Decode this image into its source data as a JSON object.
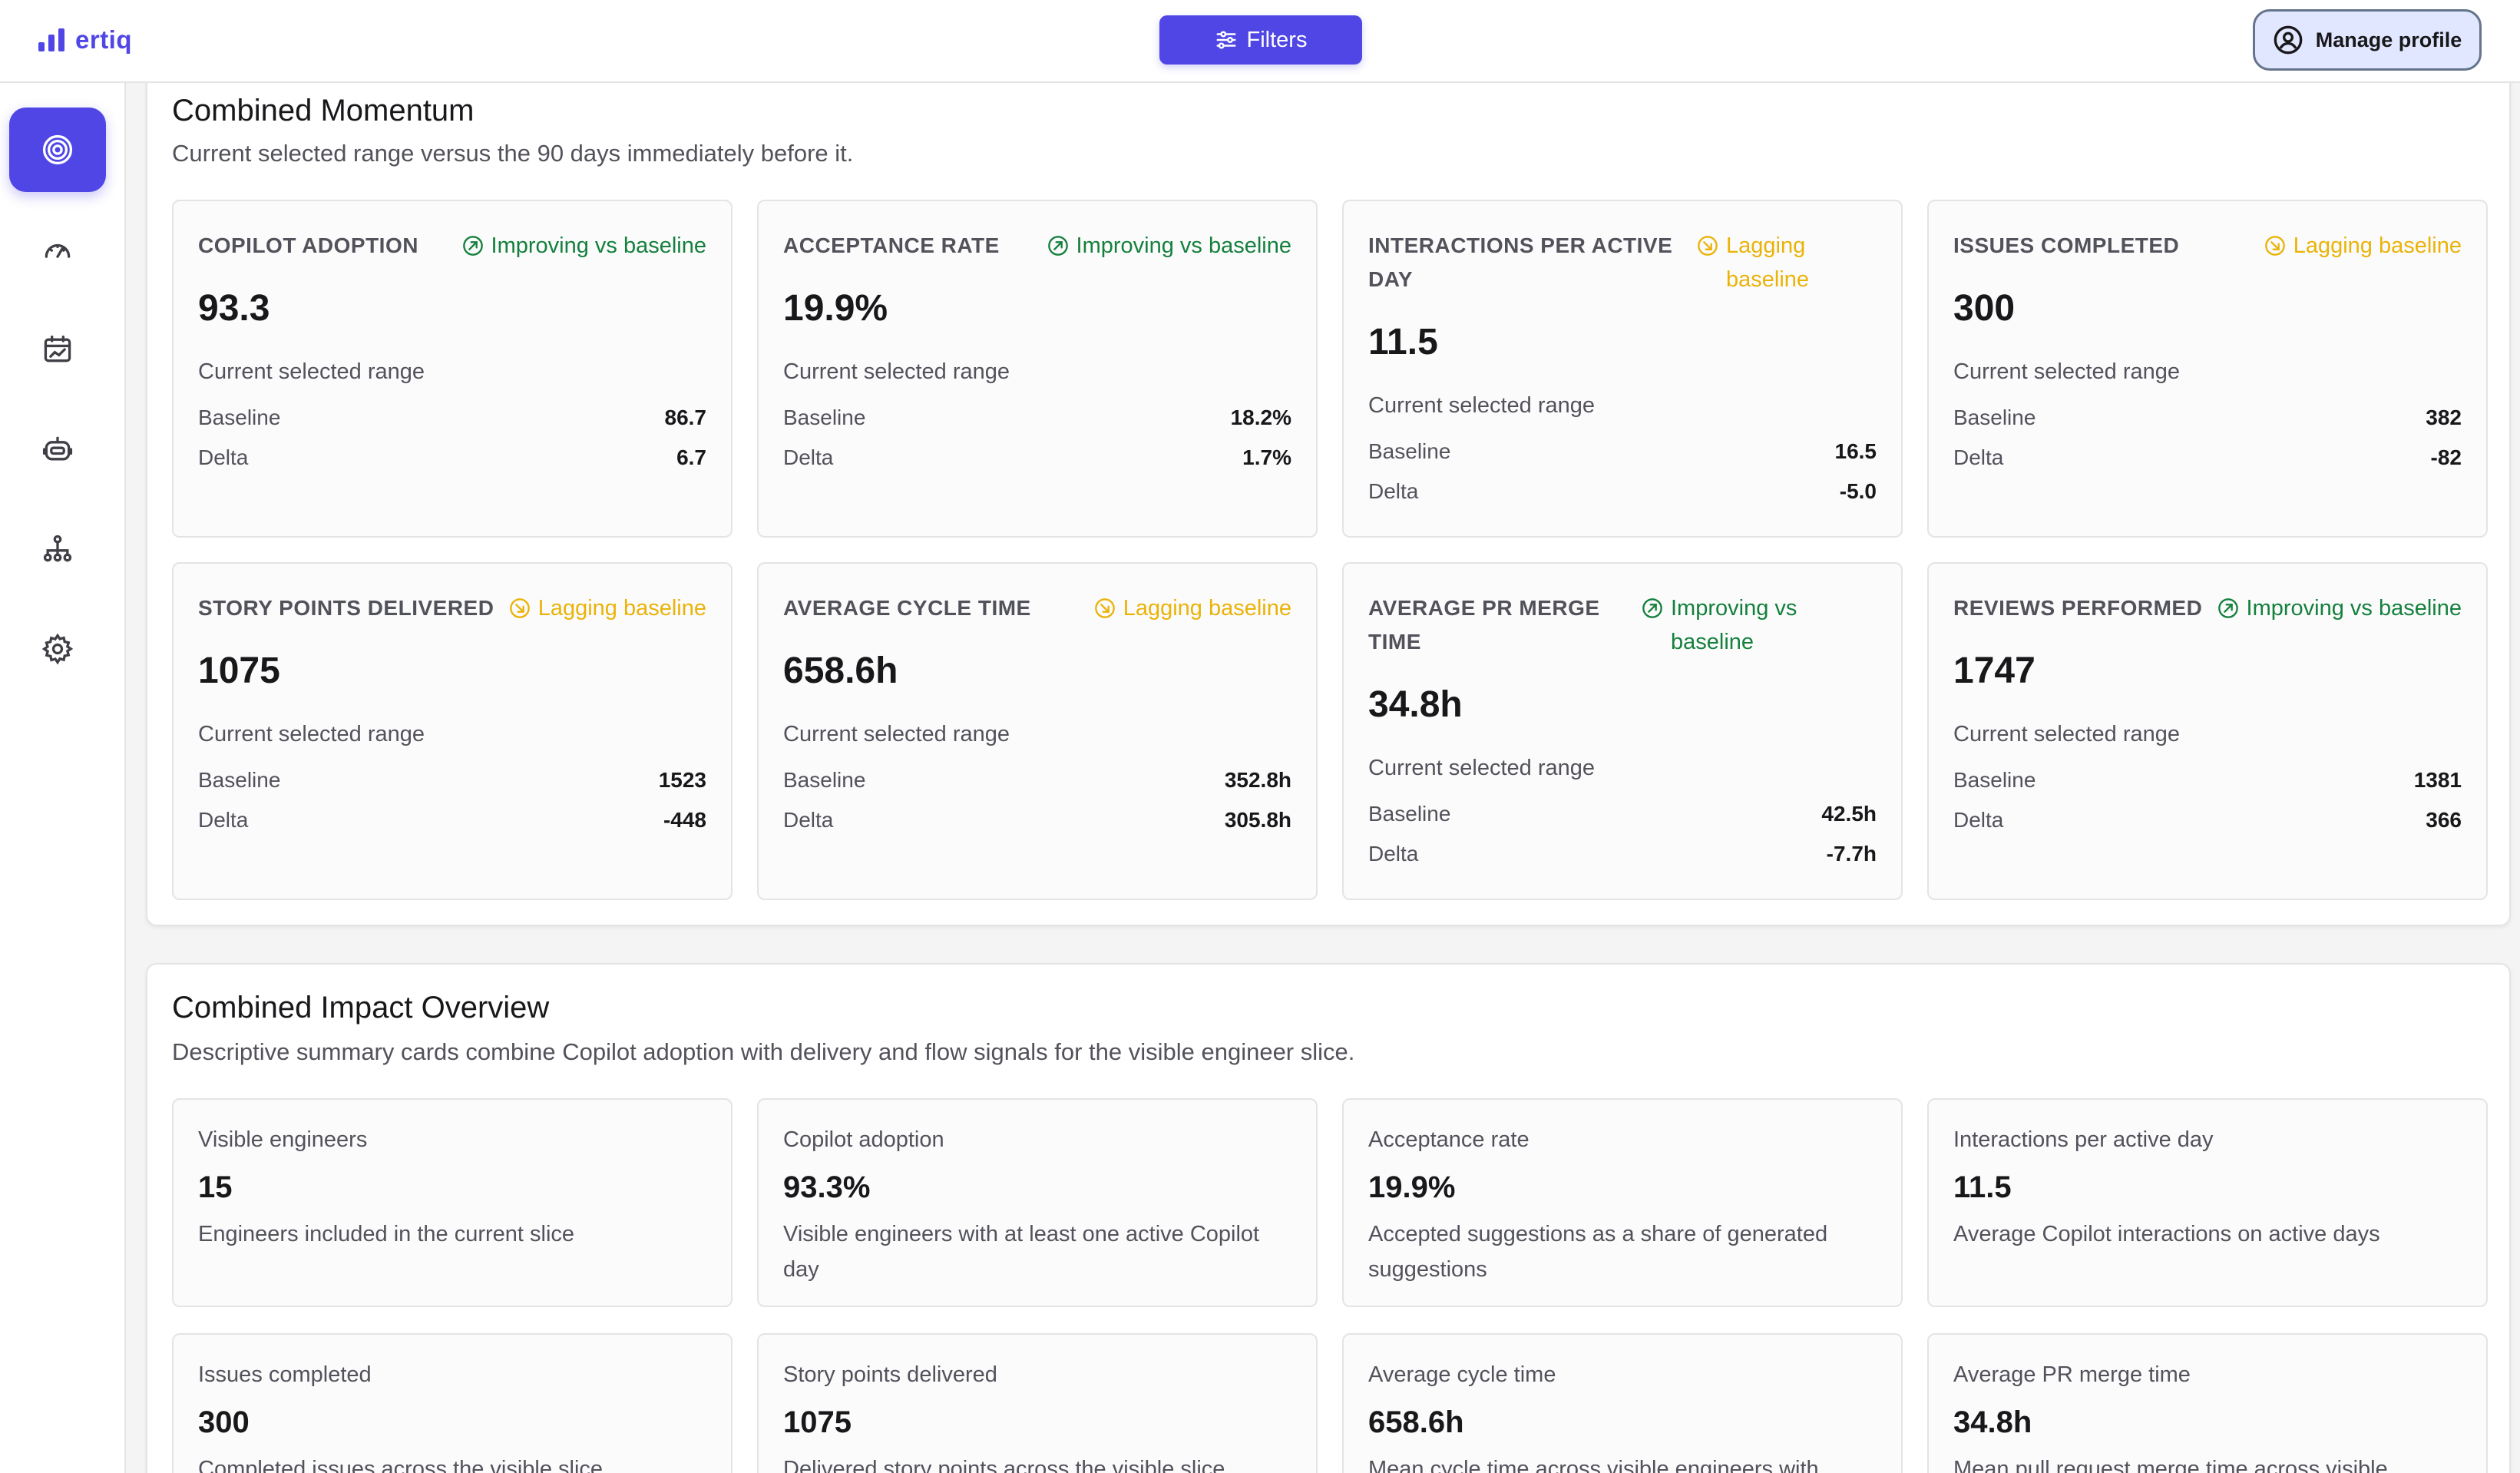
{
  "header": {
    "logo_text": "ertiq",
    "filters_label": "Filters",
    "profile_label": "Manage profile"
  },
  "colors": {
    "accent": "#4f46e5",
    "improving": "#15803d",
    "lagging": "#eab308"
  },
  "sidebar": {
    "items": [
      {
        "icon": "target-icon",
        "active": true
      },
      {
        "icon": "gauge-icon",
        "active": false
      },
      {
        "icon": "calendar-chart-icon",
        "active": false
      },
      {
        "icon": "bot-icon",
        "active": false
      },
      {
        "icon": "org-chart-icon",
        "active": false
      },
      {
        "icon": "gear-icon",
        "active": false
      }
    ]
  },
  "momentum": {
    "title": "Combined Momentum",
    "subtitle": "Current selected range versus the 90 days immediately before it.",
    "caption": "Current selected range",
    "baseline_label": "Baseline",
    "delta_label": "Delta",
    "cards": [
      {
        "label": "COPILOT ADOPTION",
        "status": "Improving vs baseline",
        "status_type": "good",
        "value": "93.3",
        "baseline": "86.7",
        "delta": "6.7"
      },
      {
        "label": "ACCEPTANCE RATE",
        "status": "Improving vs baseline",
        "status_type": "good",
        "value": "19.9%",
        "baseline": "18.2%",
        "delta": "1.7%"
      },
      {
        "label": "INTERACTIONS PER ACTIVE DAY",
        "status": "Lagging baseline",
        "status_type": "lag",
        "value": "11.5",
        "baseline": "16.5",
        "delta": "-5.0"
      },
      {
        "label": "ISSUES COMPLETED",
        "status": "Lagging baseline",
        "status_type": "lag",
        "value": "300",
        "baseline": "382",
        "delta": "-82"
      },
      {
        "label": "STORY POINTS DELIVERED",
        "status": "Lagging baseline",
        "status_type": "lag",
        "value": "1075",
        "baseline": "1523",
        "delta": "-448"
      },
      {
        "label": "AVERAGE CYCLE TIME",
        "status": "Lagging baseline",
        "status_type": "lag",
        "value": "658.6h",
        "baseline": "352.8h",
        "delta": "305.8h"
      },
      {
        "label": "AVERAGE PR MERGE TIME",
        "status": "Improving vs baseline",
        "status_type": "good",
        "value": "34.8h",
        "baseline": "42.5h",
        "delta": "-7.7h"
      },
      {
        "label": "REVIEWS PERFORMED",
        "status": "Improving vs baseline",
        "status_type": "good",
        "value": "1747",
        "baseline": "1381",
        "delta": "366"
      }
    ]
  },
  "impact": {
    "title": "Combined Impact Overview",
    "subtitle": "Descriptive summary cards combine Copilot adoption with delivery and flow signals for the visible engineer slice.",
    "cards": [
      {
        "label": "Visible engineers",
        "value": "15",
        "desc": "Engineers included in the current slice"
      },
      {
        "label": "Copilot adoption",
        "value": "93.3%",
        "desc": "Visible engineers with at least one active Copilot day"
      },
      {
        "label": "Acceptance rate",
        "value": "19.9%",
        "desc": "Accepted suggestions as a share of generated suggestions"
      },
      {
        "label": "Interactions per active day",
        "value": "11.5",
        "desc": "Average Copilot interactions on active days"
      },
      {
        "label": "Issues completed",
        "value": "300",
        "desc": "Completed issues across the visible slice"
      },
      {
        "label": "Story points delivered",
        "value": "1075",
        "desc": "Delivered story points across the visible slice"
      },
      {
        "label": "Average cycle time",
        "value": "658.6h",
        "desc": "Mean cycle time across visible engineers with"
      },
      {
        "label": "Average PR merge time",
        "value": "34.8h",
        "desc": "Mean pull request merge time across visible"
      }
    ]
  }
}
